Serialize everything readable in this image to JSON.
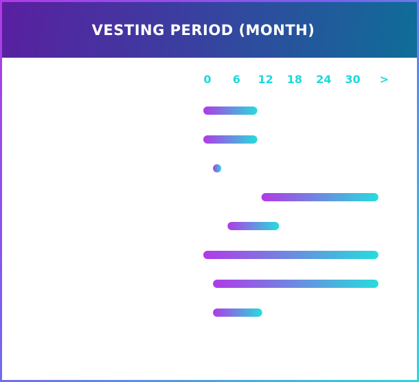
{
  "header": {
    "title": "VESTING PERIOD (MONTH)"
  },
  "colors": {
    "bar_start": "#b13ae6",
    "bar_end": "#26dcdc",
    "tick": "#1fd8dc"
  },
  "chart_data": {
    "type": "bar",
    "orientation": "horizontal-range",
    "title": "VESTING PERIOD (MONTH)",
    "x_ticks": [
      "0",
      "6",
      "12",
      "18",
      "24",
      "30",
      ">"
    ],
    "xlim": [
      0,
      37
    ],
    "categories": [
      "",
      "",
      "",
      "",
      "",
      "",
      "",
      ""
    ],
    "series": [
      {
        "ranges": [
          {
            "start": 0,
            "end": 12
          },
          {
            "start": 0,
            "end": 12
          },
          {
            "start": 2,
            "end": 4
          },
          {
            "start": 12,
            "end": 37
          },
          {
            "start": 5,
            "end": 16.5
          },
          {
            "start": 0,
            "end": 37
          },
          {
            "start": 2,
            "end": 37
          },
          {
            "start": 2,
            "end": 13
          }
        ]
      }
    ]
  }
}
